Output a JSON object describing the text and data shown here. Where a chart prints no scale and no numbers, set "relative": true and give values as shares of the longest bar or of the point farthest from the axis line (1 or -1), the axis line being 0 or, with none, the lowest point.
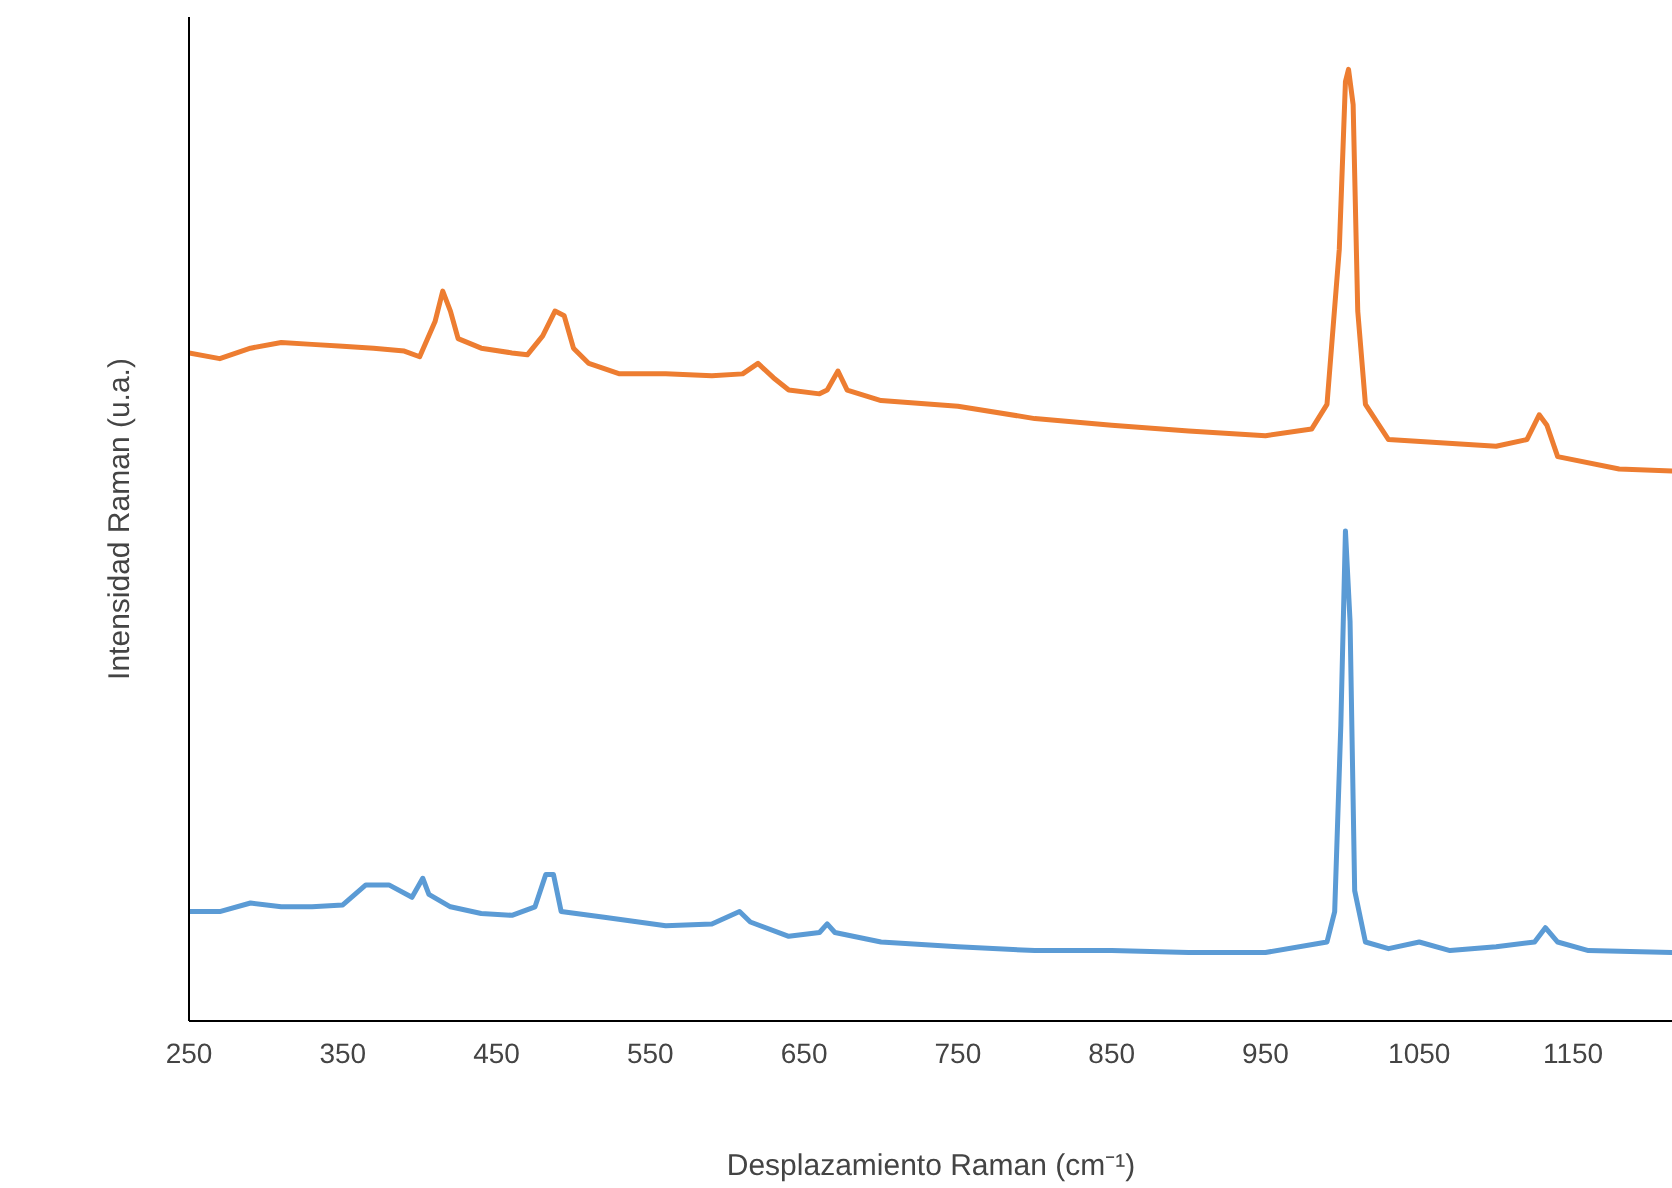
{
  "chart_data": {
    "type": "line",
    "relative": true,
    "xlabel": "Desplazamiento Raman (cm⁻¹)",
    "ylabel": "Intensidad Raman (u.a.)",
    "xlim": [
      250,
      1215
    ],
    "xticks": [
      250,
      350,
      450,
      550,
      650,
      750,
      850,
      950,
      1050,
      1150
    ],
    "marker": "none",
    "line_style": "solid",
    "series": [
      {
        "color": "#ed7d31",
        "x": [
          250,
          270,
          290,
          310,
          330,
          350,
          370,
          390,
          400,
          410,
          415,
          420,
          425,
          440,
          460,
          470,
          480,
          488,
          494,
          500,
          510,
          530,
          560,
          590,
          610,
          620,
          630,
          640,
          660,
          665,
          672,
          678,
          700,
          750,
          800,
          850,
          900,
          950,
          980,
          990,
          998,
          1002,
          1004,
          1007,
          1010,
          1015,
          1030,
          1100,
          1120,
          1128,
          1133,
          1140,
          1180,
          1215
        ],
        "values": [
          0.702,
          0.696,
          0.707,
          0.713,
          0.711,
          0.709,
          0.707,
          0.704,
          0.698,
          0.735,
          0.767,
          0.746,
          0.717,
          0.707,
          0.702,
          0.7,
          0.72,
          0.746,
          0.741,
          0.707,
          0.691,
          0.68,
          0.68,
          0.678,
          0.68,
          0.691,
          0.676,
          0.663,
          0.659,
          0.663,
          0.683,
          0.663,
          0.652,
          0.646,
          0.633,
          0.626,
          0.62,
          0.615,
          0.622,
          0.648,
          0.811,
          0.987,
          1.0,
          0.963,
          0.746,
          0.648,
          0.611,
          0.604,
          0.611,
          0.637,
          0.626,
          0.593,
          0.58,
          0.578
        ]
      },
      {
        "color": "#5b9bd5",
        "x": [
          250,
          270,
          290,
          310,
          330,
          350,
          365,
          380,
          395,
          402,
          406,
          420,
          440,
          460,
          475,
          482,
          487,
          492,
          520,
          560,
          590,
          608,
          615,
          640,
          660,
          665,
          670,
          700,
          750,
          800,
          850,
          900,
          950,
          990,
          995,
          999,
          1002,
          1005,
          1008,
          1015,
          1030,
          1050,
          1070,
          1100,
          1125,
          1132,
          1140,
          1160,
          1215
        ],
        "values": [
          0.115,
          0.115,
          0.124,
          0.12,
          0.12,
          0.122,
          0.143,
          0.143,
          0.13,
          0.15,
          0.133,
          0.12,
          0.113,
          0.111,
          0.12,
          0.154,
          0.154,
          0.115,
          0.109,
          0.1,
          0.102,
          0.115,
          0.104,
          0.089,
          0.093,
          0.102,
          0.093,
          0.083,
          0.078,
          0.074,
          0.074,
          0.072,
          0.072,
          0.083,
          0.115,
          0.311,
          0.515,
          0.42,
          0.137,
          0.083,
          0.076,
          0.083,
          0.074,
          0.078,
          0.083,
          0.098,
          0.083,
          0.074,
          0.072
        ]
      }
    ]
  }
}
